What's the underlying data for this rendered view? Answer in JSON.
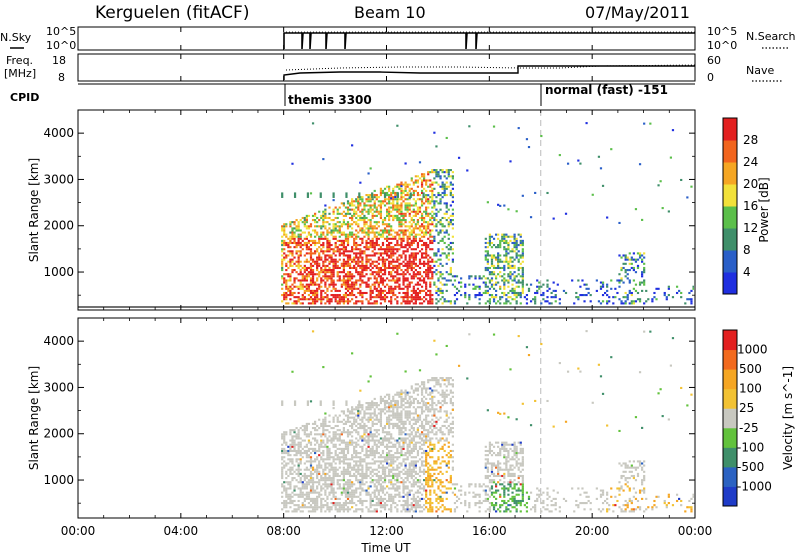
{
  "header": {
    "station": "Kerguelen (fitACF)",
    "beam": "Beam 10",
    "date": "07/May/2011"
  },
  "side_labels": {
    "nsky": "N.Sky",
    "nsky_ticks": [
      "10^5",
      "10^0"
    ],
    "nsearch": "N.Search",
    "nsearch_ticks": [
      "10^5",
      "10^0"
    ],
    "freq_line1": "Freq.",
    "freq_line2": "[MHz]",
    "freq_ticks": [
      "18",
      "8"
    ],
    "nave": "Nave",
    "nave_ticks": [
      "60",
      "0"
    ],
    "cpid": "CPID"
  },
  "cpid_segments": [
    {
      "label": "themis 3300",
      "start_hour": 7.9
    },
    {
      "label": "normal (fast) -151",
      "start_hour": 18.0
    }
  ],
  "x_axis": {
    "label": "Time UT",
    "ticks": [
      "00:00",
      "04:00",
      "08:00",
      "12:00",
      "16:00",
      "20:00",
      "00:00"
    ]
  },
  "chart_data": [
    {
      "type": "heatmap",
      "title": "",
      "xlabel": "Time UT",
      "ylabel": "Slant Range [km]",
      "xlim": [
        0,
        24
      ],
      "ylim": [
        180,
        4500
      ],
      "yticks": [
        1000,
        2000,
        3000,
        4000
      ],
      "colorbar": {
        "label": "Power [dB]",
        "ticks": [
          "4",
          "8",
          "12",
          "16",
          "20",
          "24",
          "28"
        ],
        "colors": [
          "#1f2fe0",
          "#2a5fc8",
          "#3f8f6a",
          "#5bbf4a",
          "#f2e13a",
          "#f5a623",
          "#f2651e",
          "#e32020"
        ]
      }
    },
    {
      "type": "heatmap",
      "title": "",
      "xlabel": "Time UT",
      "ylabel": "Slant Range [km]",
      "xlim": [
        0,
        24
      ],
      "ylim": [
        180,
        4500
      ],
      "yticks": [
        1000,
        2000,
        3000,
        4000
      ],
      "colorbar": {
        "label": "Velocity [m s^-1]",
        "ticks": [
          "1000",
          "500",
          "100",
          "25",
          "-25",
          "-100",
          "-500",
          "-1000"
        ],
        "colors": [
          "#1f3cc8",
          "#2b62c2",
          "#3f8f6a",
          "#62c23c",
          "#c8c8c0",
          "#f2c233",
          "#f5a623",
          "#f26a1e",
          "#e32020"
        ]
      }
    }
  ]
}
